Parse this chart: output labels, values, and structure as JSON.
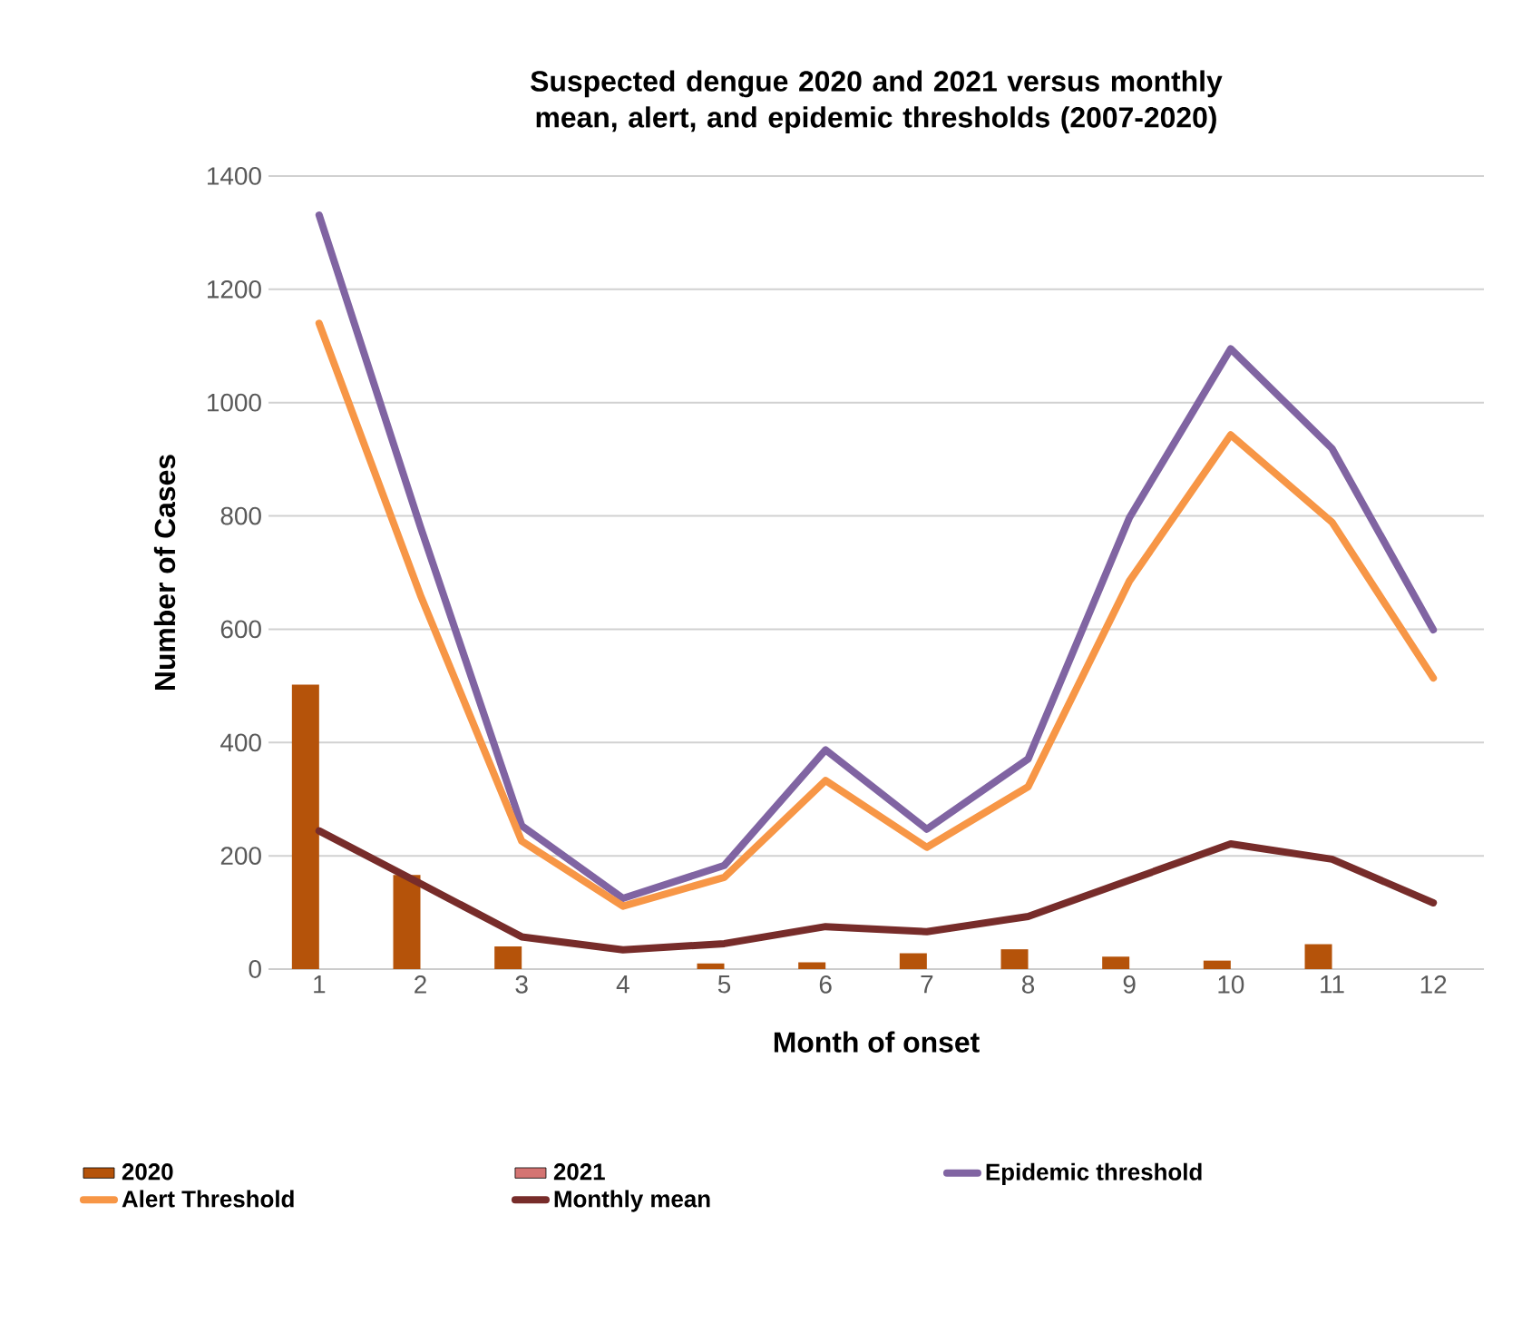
{
  "chart_data": {
    "type": "bar",
    "title": "Suspected dengue 2020 and 2021 versus monthly mean, alert, and epidemic thresholds (2007-2020)",
    "xlabel": "Month of onset",
    "ylabel": "Number of Cases",
    "categories": [
      "1",
      "2",
      "3",
      "4",
      "5",
      "6",
      "7",
      "8",
      "9",
      "10",
      "11",
      "12"
    ],
    "series": [
      {
        "name": "2020",
        "color": "#b5530a",
        "values": [
          502,
          166,
          40,
          0,
          10,
          12,
          28,
          35,
          22,
          15,
          44,
          0
        ]
      },
      {
        "name": "2021",
        "color": "#d47472",
        "values": [
          null,
          null,
          null,
          null,
          null,
          null,
          null,
          null,
          null,
          null,
          null,
          null
        ]
      },
      {
        "name": "Epidemic threshold",
        "type": "line",
        "color": "#8064a2",
        "values": [
          1331,
          781,
          253,
          125,
          183,
          387,
          247,
          371,
          797,
          1095,
          919,
          599
        ]
      },
      {
        "name": "Alert Threshold",
        "type": "line",
        "color": "#f79646",
        "values": [
          1140,
          660,
          226,
          111,
          162,
          333,
          215,
          322,
          685,
          943,
          789,
          514
        ]
      },
      {
        "name": "Monthly mean",
        "type": "line",
        "color": "#772c2a",
        "values": [
          244,
          151,
          57,
          34,
          45,
          75,
          66,
          93,
          157,
          221,
          194,
          117
        ]
      }
    ],
    "ylim": [
      0,
      1400
    ],
    "yticks": [
      0,
      200,
      400,
      600,
      800,
      1000,
      1200,
      1400
    ],
    "grid": "y",
    "legend": "bottom",
    "marker": "none",
    "line_style": "solid"
  }
}
